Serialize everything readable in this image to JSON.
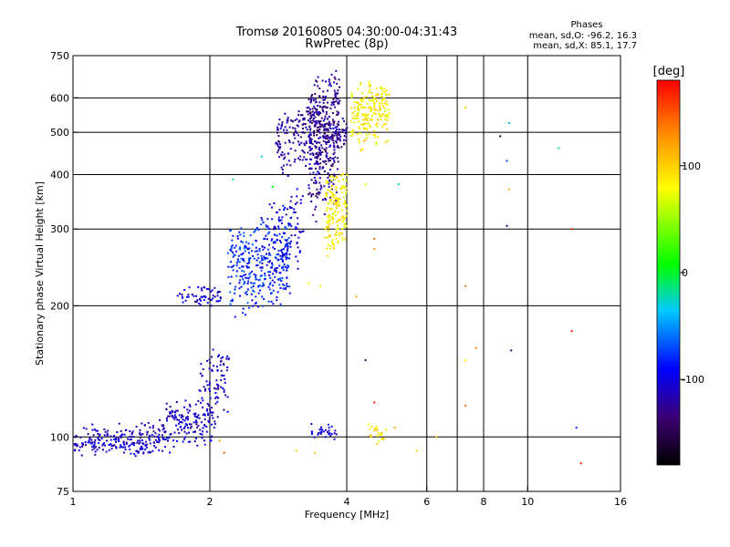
{
  "chart_data": {
    "type": "scatter",
    "title": "Tromsø 20160805 04:30:00-04:31:43",
    "subtitle": "RwPretec (8p)",
    "xlabel": "Frequency [MHz]",
    "ylabel": "Stationary phase Virtual Height [km]",
    "x_scale": "log2",
    "y_scale": "log",
    "xlim": [
      1,
      16
    ],
    "ylim": [
      75,
      750
    ],
    "x_ticks": [
      1,
      2,
      4,
      6,
      8,
      10,
      16
    ],
    "x_tick_labels": [
      "1",
      "2",
      "4",
      "6",
      "8",
      "10",
      "16"
    ],
    "x_gridlines": [
      2,
      4,
      6,
      7,
      8,
      10
    ],
    "y_ticks": [
      75,
      100,
      200,
      300,
      400,
      500,
      600,
      750
    ],
    "y_tick_labels": [
      "75",
      "100",
      "200",
      "300",
      "400",
      "500",
      "600",
      "750"
    ],
    "y_gridlines": [
      100,
      200,
      300,
      400,
      500,
      600
    ],
    "grid": true,
    "phase_legend": {
      "title": "Phases",
      "line_o": "mean, sd,O: -96.2, 16.3",
      "line_x": "mean, sd,X:  85.1, 17.7"
    },
    "colorbar": {
      "label": "[deg]",
      "range": [
        -180,
        180
      ],
      "tick_values": [
        100,
        0,
        -100
      ],
      "tick_labels": [
        "100",
        "0",
        "-100"
      ]
    },
    "traces": [
      {
        "name": "",
        "x_range": [
          1.0,
          1.55
        ],
        "y_range": [
          92,
          100
        ],
        "phase": -105,
        "count": 160,
        "jitter": 3
      },
      {
        "name": "",
        "x_range": [
          1.05,
          1.45
        ],
        "y_range": [
          100,
          106
        ],
        "phase": -110,
        "count": 40,
        "jitter": 3
      },
      {
        "name": "",
        "x_range": [
          1.55,
          2.05
        ],
        "y_range": [
          96,
          112
        ],
        "phase": -100,
        "count": 90,
        "jitter": 5
      },
      {
        "name": "",
        "x_range": [
          1.6,
          1.9
        ],
        "y_range": [
          106,
          118
        ],
        "phase": -112,
        "count": 60,
        "jitter": 5
      },
      {
        "name": "",
        "x_range": [
          1.9,
          2.2
        ],
        "y_range": [
          110,
          158
        ],
        "phase": -110,
        "count": 90,
        "jitter": 8
      },
      {
        "name": "",
        "x_range": [
          1.45,
          1.6
        ],
        "y_range": [
          100,
          106
        ],
        "phase": -115,
        "count": 20,
        "jitter": 3
      },
      {
        "name": "",
        "x_range": [
          1.7,
          2.12
        ],
        "y_range": [
          220,
          202
        ],
        "phase": -105,
        "count": 55,
        "jitter": 3
      },
      {
        "name": "",
        "x_range": [
          2.2,
          3.0
        ],
        "y_range": [
          200,
          300
        ],
        "phase": -80,
        "count": 320,
        "jitter": 20
      },
      {
        "name": "",
        "x_range": [
          2.6,
          3.2
        ],
        "y_range": [
          220,
          360
        ],
        "phase": -100,
        "count": 120,
        "jitter": 15
      },
      {
        "name": "",
        "x_range": [
          2.8,
          3.35
        ],
        "y_range": [
          410,
          560
        ],
        "phase": -120,
        "count": 140,
        "jitter": 30
      },
      {
        "name": "",
        "x_range": [
          3.3,
          3.85
        ],
        "y_range": [
          350,
          650
        ],
        "phase": -125,
        "count": 380,
        "jitter": 60
      },
      {
        "name": "",
        "x_range": [
          3.5,
          4.0
        ],
        "y_range": [
          460,
          520
        ],
        "phase": -130,
        "count": 80,
        "jitter": 20
      },
      {
        "name": "",
        "x_range": [
          3.6,
          4.0
        ],
        "y_range": [
          270,
          400
        ],
        "phase": 85,
        "count": 160,
        "jitter": 20
      },
      {
        "name": "",
        "x_range": [
          4.1,
          4.95
        ],
        "y_range": [
          470,
          640
        ],
        "phase": 85,
        "count": 200,
        "jitter": 40
      },
      {
        "name": "",
        "x_range": [
          3.3,
          3.8
        ],
        "y_range": [
          100,
          106
        ],
        "phase": -100,
        "count": 30,
        "jitter": 3
      },
      {
        "name": "",
        "x_range": [
          4.4,
          4.9
        ],
        "y_range": [
          98,
          106
        ],
        "phase": 90,
        "count": 25,
        "jitter": 3
      }
    ],
    "isolated_points": [
      {
        "x": 7.3,
        "y": 570,
        "phase": 100
      },
      {
        "x": 8.7,
        "y": 490,
        "phase": -160
      },
      {
        "x": 9.1,
        "y": 525,
        "phase": -40
      },
      {
        "x": 9.0,
        "y": 430,
        "phase": -70
      },
      {
        "x": 9.1,
        "y": 370,
        "phase": 110
      },
      {
        "x": 9.0,
        "y": 305,
        "phase": -130
      },
      {
        "x": 11.7,
        "y": 460,
        "phase": -20
      },
      {
        "x": 12.5,
        "y": 300,
        "phase": 160
      },
      {
        "x": 12.5,
        "y": 175,
        "phase": 170
      },
      {
        "x": 9.2,
        "y": 158,
        "phase": -140
      },
      {
        "x": 12.8,
        "y": 105,
        "phase": -80
      },
      {
        "x": 13.1,
        "y": 87,
        "phase": 170
      },
      {
        "x": 7.3,
        "y": 222,
        "phase": 140
      },
      {
        "x": 7.7,
        "y": 160,
        "phase": 130
      },
      {
        "x": 7.3,
        "y": 118,
        "phase": 145
      },
      {
        "x": 7.3,
        "y": 150,
        "phase": 80
      },
      {
        "x": 4.6,
        "y": 285,
        "phase": 140
      },
      {
        "x": 4.6,
        "y": 270,
        "phase": 120
      },
      {
        "x": 4.4,
        "y": 150,
        "phase": -150
      },
      {
        "x": 4.6,
        "y": 120,
        "phase": 170
      },
      {
        "x": 5.1,
        "y": 105,
        "phase": 120
      },
      {
        "x": 5.7,
        "y": 93,
        "phase": 100
      },
      {
        "x": 6.3,
        "y": 100,
        "phase": 110
      },
      {
        "x": 3.3,
        "y": 225,
        "phase": 80
      },
      {
        "x": 3.5,
        "y": 222,
        "phase": 90
      },
      {
        "x": 3.4,
        "y": 92,
        "phase": 110
      },
      {
        "x": 3.1,
        "y": 93,
        "phase": 100
      },
      {
        "x": 4.2,
        "y": 210,
        "phase": 120
      },
      {
        "x": 4.4,
        "y": 380,
        "phase": 70
      },
      {
        "x": 5.2,
        "y": 380,
        "phase": -30
      },
      {
        "x": 2.75,
        "y": 375,
        "phase": 10
      },
      {
        "x": 2.25,
        "y": 390,
        "phase": -20
      },
      {
        "x": 2.6,
        "y": 440,
        "phase": -30
      },
      {
        "x": 2.15,
        "y": 92,
        "phase": 150
      },
      {
        "x": 2.1,
        "y": 98,
        "phase": 120
      }
    ]
  }
}
